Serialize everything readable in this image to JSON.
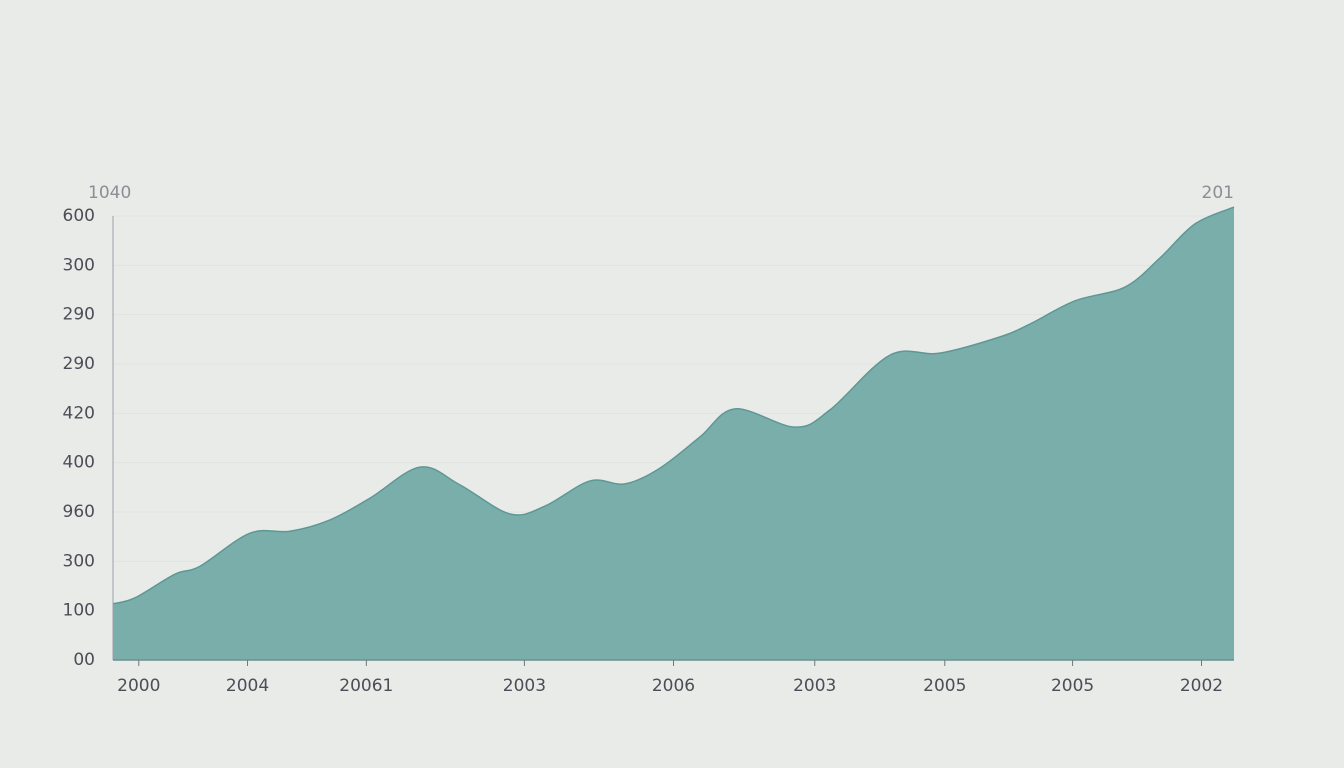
{
  "chart_data": {
    "type": "area",
    "annotations": [
      "1040",
      "201"
    ],
    "x": [
      0,
      1.96,
      5.53,
      7.76,
      12.22,
      15.79,
      19.36,
      22.93,
      27.39,
      30.95,
      35.41,
      38.54,
      42.55,
      45.67,
      48.8,
      52.36,
      55.49,
      60.84,
      63.96,
      69.31,
      73.77,
      79.13,
      81.8,
      85.82,
      90.28,
      93.4,
      96.52,
      100
    ],
    "series": [
      {
        "color": "#7aaeab",
        "values": [
          1.14,
          1.26,
          1.74,
          1.9,
          2.57,
          2.61,
          2.84,
          3.28,
          3.91,
          3.55,
          2.96,
          3.12,
          3.63,
          3.57,
          3.89,
          4.52,
          5.09,
          4.72,
          5.07,
          6.18,
          6.22,
          6.55,
          6.81,
          7.28,
          7.56,
          8.15,
          8.84,
          9.18
        ]
      }
    ],
    "xlim": [
      0,
      100
    ],
    "xticks": [
      {
        "value": 2.3,
        "label": "2000"
      },
      {
        "value": 12.0,
        "label": "2004"
      },
      {
        "value": 22.6,
        "label": "20061"
      },
      {
        "value": 36.7,
        "label": "2003"
      },
      {
        "value": 50.0,
        "label": "2006"
      },
      {
        "value": 62.6,
        "label": "2003"
      },
      {
        "value": 74.2,
        "label": "2005"
      },
      {
        "value": 85.6,
        "label": "2005"
      },
      {
        "value": 97.1,
        "label": "2002"
      }
    ],
    "ylim": [
      0,
      9
    ],
    "yticks": [
      {
        "value": 0,
        "label": "00"
      },
      {
        "value": 1,
        "label": "100"
      },
      {
        "value": 2,
        "label": "300"
      },
      {
        "value": 3,
        "label": "960"
      },
      {
        "value": 4,
        "label": "400"
      },
      {
        "value": 5,
        "label": "420"
      },
      {
        "value": 6,
        "label": "290"
      },
      {
        "value": 7,
        "label": "290"
      },
      {
        "value": 8,
        "label": "300"
      },
      {
        "value": 9,
        "label": "600"
      }
    ],
    "grid": true
  }
}
